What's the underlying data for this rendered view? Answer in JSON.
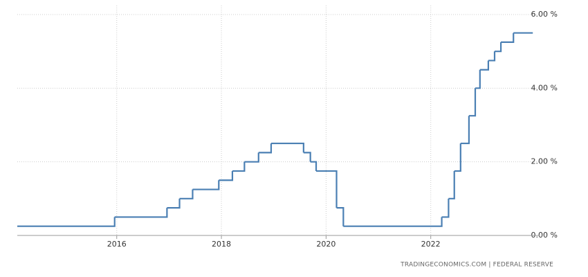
{
  "chart_data": {
    "type": "line",
    "drawstyle": "steps-post",
    "source": "TRADINGECONOMICS.COM  |  FEDERAL RESERVE",
    "x": [
      2014.1,
      2015.96,
      2016.96,
      2017.2,
      2017.45,
      2017.95,
      2018.21,
      2018.44,
      2018.71,
      2018.95,
      2019.57,
      2019.7,
      2019.81,
      2020.2,
      2020.33,
      2022.21,
      2022.34,
      2022.45,
      2022.57,
      2022.73,
      2022.85,
      2022.94,
      2023.1,
      2023.22,
      2023.34,
      2023.58,
      2023.95
    ],
    "values": [
      0.25,
      0.5,
      0.75,
      1.0,
      1.25,
      1.5,
      1.75,
      2.0,
      2.25,
      2.5,
      2.25,
      2.0,
      1.75,
      0.75,
      0.25,
      0.5,
      1.0,
      1.75,
      2.5,
      3.25,
      4.0,
      4.5,
      4.75,
      5.0,
      5.25,
      5.5,
      5.5
    ],
    "color": "#4a7fb3",
    "xlim": [
      2014.1,
      2024.0
    ],
    "xticks": [
      2016,
      2018,
      2020,
      2022
    ],
    "ylim": [
      0,
      6
    ],
    "yticks": [
      {
        "value": 0,
        "label": "0.00 %"
      },
      {
        "value": 2,
        "label": "2.00 %"
      },
      {
        "value": 4,
        "label": "4.00 %"
      },
      {
        "value": 6,
        "label": "6.00 %"
      }
    ],
    "grid": true
  }
}
